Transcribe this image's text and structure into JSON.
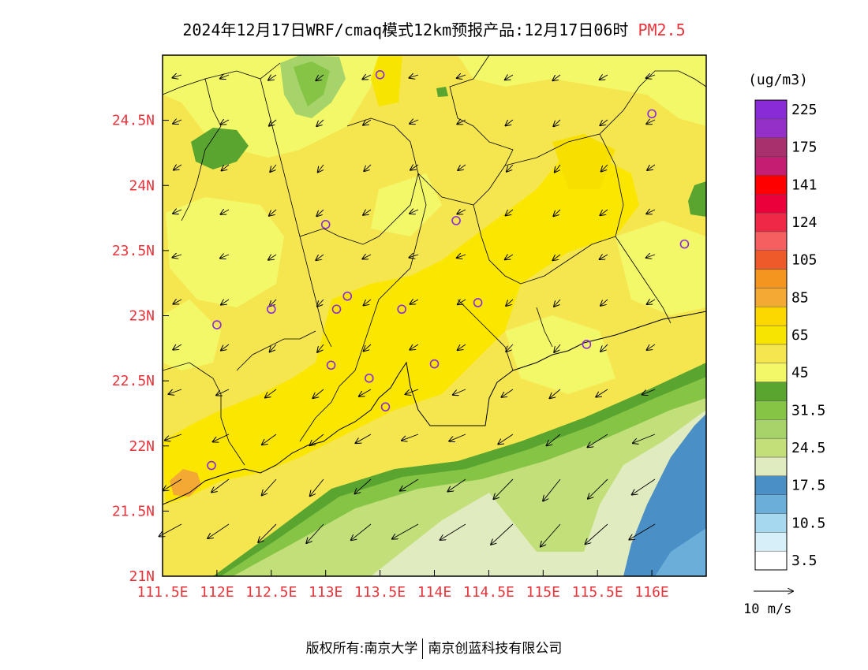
{
  "title": {
    "main": "2024年12月17日WRF/cmaq模式12km预报产品:12月17日06时",
    "pollutant": "PM2.5"
  },
  "colorbar": {
    "unit": "(ug/m3)",
    "colors": [
      "#ffffff",
      "#d6eff8",
      "#a6d8f0",
      "#6aaed9",
      "#4a8fc5",
      "#e1ebc0",
      "#c2df7a",
      "#a6d36a",
      "#85c444",
      "#5aa530",
      "#f3f868",
      "#f5e650",
      "#f7e400",
      "#fdd800",
      "#f5a935",
      "#f3951e",
      "#ef5a2a",
      "#f55f5f",
      "#f02848",
      "#ec003c",
      "#ff0000",
      "#c41e72",
      "#a8306c",
      "#9430c8",
      "#8a2bd8"
    ],
    "labels": [
      "3.5",
      "10.5",
      "17.5",
      "24.5",
      "31.5",
      "45",
      "65",
      "85",
      "105",
      "124",
      "141",
      "175",
      "225"
    ]
  },
  "map": {
    "lon_labels": [
      "111.5E",
      "112E",
      "112.5E",
      "113E",
      "113.5E",
      "114E",
      "114.5E",
      "115E",
      "115.5E",
      "116E"
    ],
    "lat_labels": [
      "21N",
      "21.5N",
      "22N",
      "22.5N",
      "23N",
      "23.5N",
      "24N",
      "24.5N"
    ],
    "lon_range": [
      111.5,
      116.5
    ],
    "lat_range": [
      21.0,
      25.0
    ],
    "stations": [
      {
        "lon": 113.5,
        "lat": 24.85
      },
      {
        "lon": 116.0,
        "lat": 24.55
      },
      {
        "lon": 113.0,
        "lat": 23.7
      },
      {
        "lon": 114.2,
        "lat": 23.73
      },
      {
        "lon": 116.3,
        "lat": 23.55
      },
      {
        "lon": 113.2,
        "lat": 23.15
      },
      {
        "lon": 112.5,
        "lat": 23.05
      },
      {
        "lon": 113.1,
        "lat": 23.05
      },
      {
        "lon": 113.7,
        "lat": 23.05
      },
      {
        "lon": 114.4,
        "lat": 23.1
      },
      {
        "lon": 112.0,
        "lat": 22.93
      },
      {
        "lon": 115.4,
        "lat": 22.78
      },
      {
        "lon": 113.05,
        "lat": 22.62
      },
      {
        "lon": 113.4,
        "lat": 22.52
      },
      {
        "lon": 114.0,
        "lat": 22.63
      },
      {
        "lon": 113.55,
        "lat": 22.3
      },
      {
        "lon": 111.95,
        "lat": 21.85
      }
    ]
  },
  "wind_legend": {
    "label": "10 m/s"
  },
  "footer": {
    "left": "版权所有:南京大学",
    "right": "南京创蓝科技有限公司"
  }
}
